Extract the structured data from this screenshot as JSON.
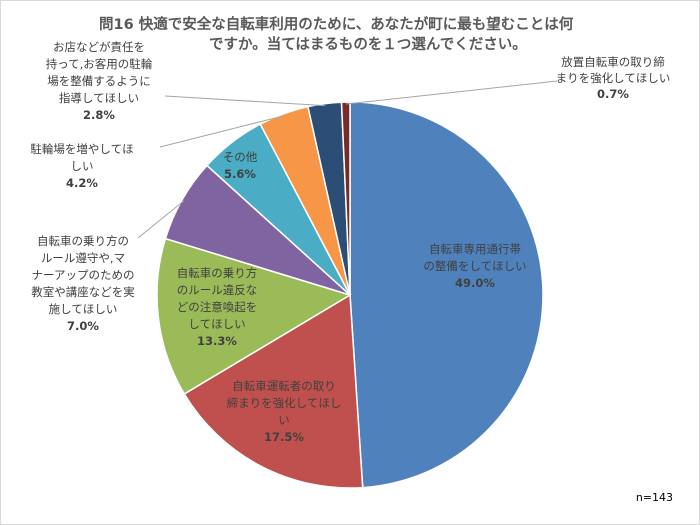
{
  "chart_data": {
    "type": "pie",
    "title_lines": [
      "問16  快適で安全な自転車利用のために、あなたが町に最も望むことは何",
      "ですか。当てはまるものを１つ選んでください。"
    ],
    "n_label": "n=143",
    "slices": [
      {
        "label_lines": [
          "自転車専用通行帯",
          "の整備をしてほしい"
        ],
        "pct_text": "49.0%",
        "value": 49.0,
        "color": "#4f81bd"
      },
      {
        "label_lines": [
          "自転車運転者の取り",
          "締まりを強化してほし",
          "い"
        ],
        "pct_text": "17.5%",
        "value": 17.5,
        "color": "#c0504d"
      },
      {
        "label_lines": [
          "自転車の乗り方",
          "のルール違反な",
          "どの注意喚起を",
          "してほしい"
        ],
        "pct_text": "13.3%",
        "value": 13.3,
        "color": "#9bbb59"
      },
      {
        "label_lines": [
          "自転車の乗り方の",
          "ルール遵守や,マ",
          "ナーアップのための",
          "教室や講座などを実",
          "施してほしい"
        ],
        "pct_text": "7.0%",
        "value": 7.0,
        "color": "#8064a2"
      },
      {
        "label_lines": [
          "その他"
        ],
        "pct_text": "5.6%",
        "value": 5.6,
        "color": "#4bacc6"
      },
      {
        "label_lines": [
          "駐輪場を増やしてほ",
          "しい"
        ],
        "pct_text": "4.2%",
        "value": 4.2,
        "color": "#f79646"
      },
      {
        "label_lines": [
          "お店などが責任を",
          "持って,お客用の駐輪",
          "場を整備するように",
          "指導してほしい"
        ],
        "pct_text": "2.8%",
        "value": 2.8,
        "color": "#2c4d75"
      },
      {
        "label_lines": [
          "放置自転車の取り締",
          "まりを強化してほしい"
        ],
        "pct_text": "0.7%",
        "value": 0.7,
        "color": "#772c2a"
      }
    ]
  }
}
